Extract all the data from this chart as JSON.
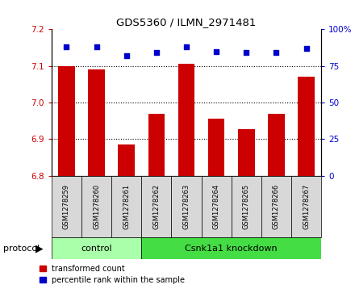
{
  "title": "GDS5360 / ILMN_2971481",
  "samples": [
    "GSM1278259",
    "GSM1278260",
    "GSM1278261",
    "GSM1278262",
    "GSM1278263",
    "GSM1278264",
    "GSM1278265",
    "GSM1278266",
    "GSM1278267"
  ],
  "bar_values": [
    7.1,
    7.09,
    6.885,
    6.97,
    7.105,
    6.955,
    6.928,
    6.97,
    7.07
  ],
  "percentile_values": [
    88,
    88,
    82,
    84,
    88,
    85,
    84,
    84,
    87
  ],
  "bar_color": "#cc0000",
  "dot_color": "#0000cc",
  "ylim_left": [
    6.8,
    7.2
  ],
  "ylim_right": [
    0,
    100
  ],
  "yticks_left": [
    6.8,
    6.9,
    7.0,
    7.1,
    7.2
  ],
  "yticks_right": [
    0,
    25,
    50,
    75,
    100
  ],
  "grid_values": [
    6.9,
    7.0,
    7.1
  ],
  "control_label": "control",
  "knockdown_label": "Csnk1a1 knockdown",
  "protocol_label": "protocol",
  "legend_bar": "transformed count",
  "legend_dot": "percentile rank within the sample",
  "control_indices": [
    0,
    1,
    2
  ],
  "knockdown_indices": [
    3,
    4,
    5,
    6,
    7,
    8
  ],
  "control_color": "#aaffaa",
  "knockdown_color": "#44dd44",
  "bar_bottom": 6.8,
  "bar_width": 0.55,
  "label_box_color": "#d8d8d8",
  "dot_size": 18
}
